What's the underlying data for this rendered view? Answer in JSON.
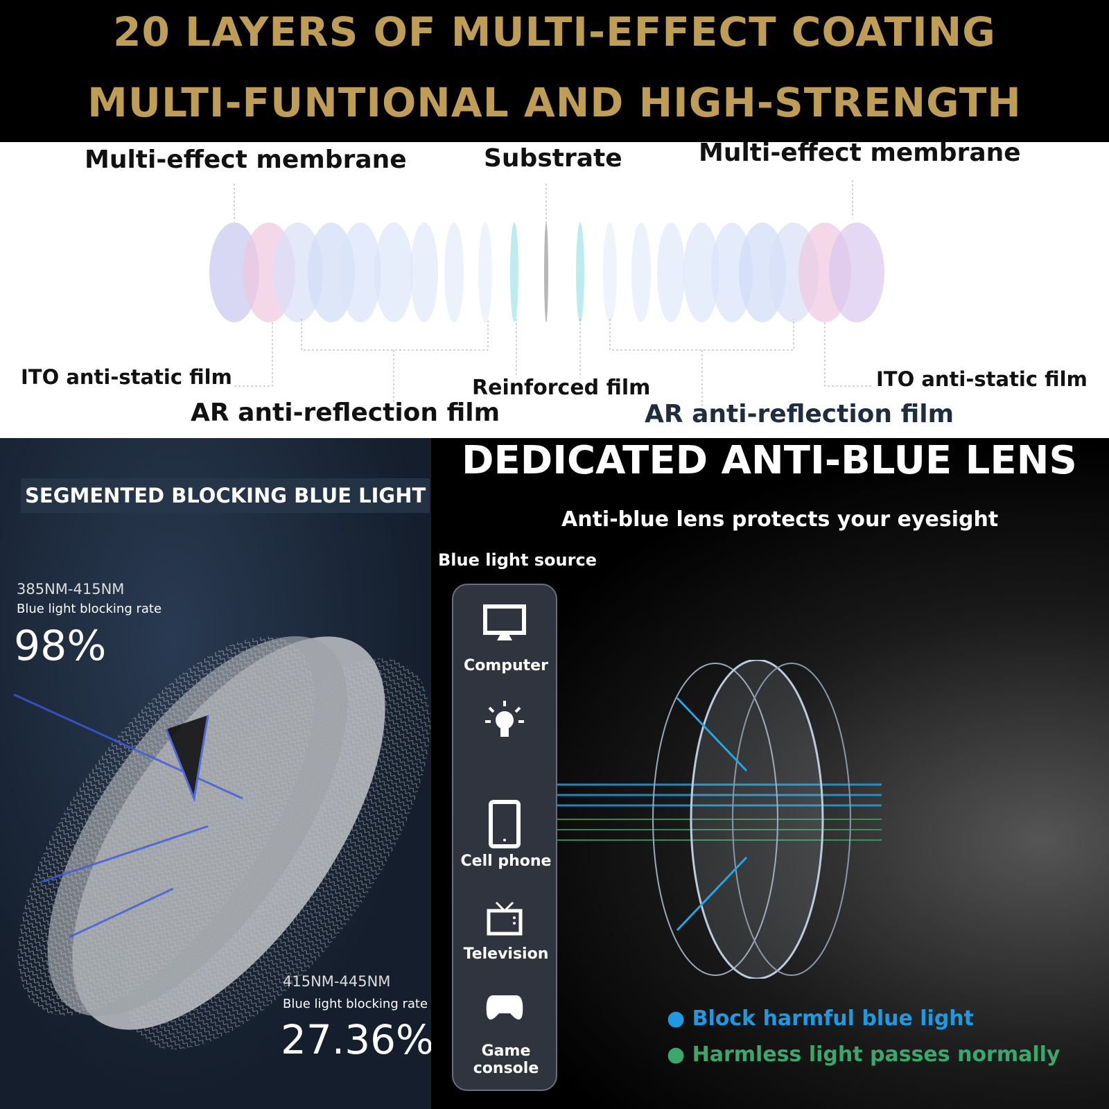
{
  "header": {
    "line1": "20 LAYERS OF MULTI-EFFECT COATING",
    "line2": "MULTI-FUNTIONAL AND HIGH-STRENGTH",
    "color": "#bf9d55"
  },
  "layers": {
    "left_membrane": "Multi-effect membrane",
    "substrate": "Substrate",
    "right_membrane": "Multi-effect membrane",
    "ito_left": "ITO anti-static film",
    "ar_left": "AR anti-reflection film",
    "reinforced": "Reinforced film",
    "ar_right": "AR anti-reflection film",
    "ito_right": "ITO anti-static film"
  },
  "segmented": {
    "title": "SEGMENTED BLOCKING BLUE LIGHT",
    "band1": {
      "range": "385NM-415NM",
      "label": "Blue light blocking rate",
      "rate": "98%"
    },
    "band2": {
      "range": "415NM-445NM",
      "label": "Blue light blocking rate",
      "rate": "27.36%"
    }
  },
  "antiblue": {
    "title": "DEDICATED ANTI-BLUE LENS",
    "subtitle": "Anti-blue lens protects your eyesight",
    "source_label": "Blue light source",
    "sources": [
      {
        "label": "Computer",
        "icon": "monitor-icon"
      },
      {
        "label": "",
        "icon": "light-bulb-icon"
      },
      {
        "label": "Cell phone",
        "icon": "phone-icon"
      },
      {
        "label": "Television",
        "icon": "tv-icon"
      },
      {
        "label": "Game console",
        "icon": "gamepad-icon"
      }
    ],
    "legend": [
      {
        "text": "Block harmful blue light",
        "color": "#1e9be0"
      },
      {
        "text": "Harmless light passes normally",
        "color": "#3aa86a"
      }
    ]
  }
}
